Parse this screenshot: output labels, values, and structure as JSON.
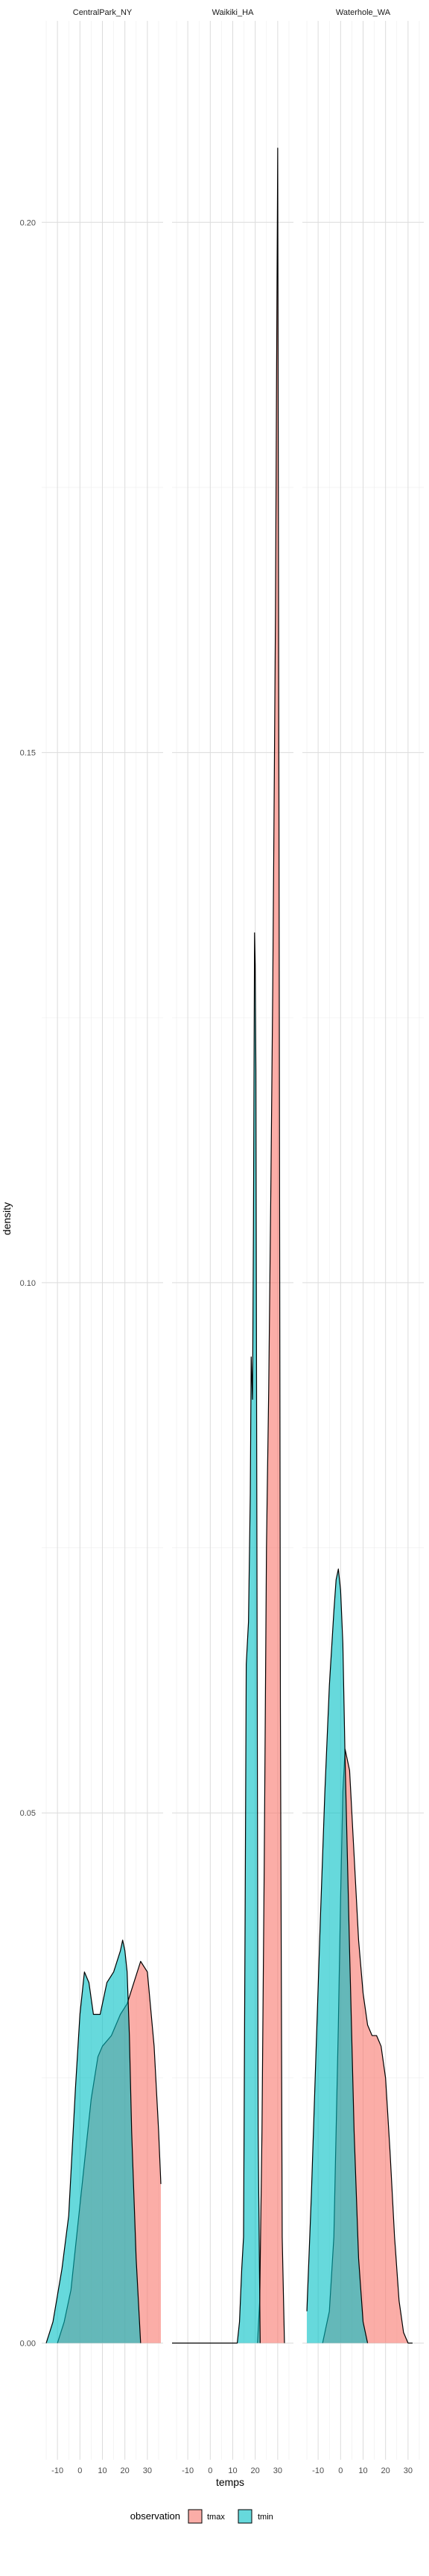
{
  "chart_data": {
    "type": "area",
    "xlabel": "temps",
    "ylabel": "density",
    "xlim": [
      -17,
      37
    ],
    "ylim": [
      -0.011,
      0.219
    ],
    "x_ticks": [
      -10,
      0,
      10,
      20,
      30
    ],
    "x_tick_labels": [
      "-10",
      "0",
      "10",
      "20",
      "30"
    ],
    "y_ticks": [
      0.0,
      0.05,
      0.1,
      0.15,
      0.2
    ],
    "y_tick_labels": [
      "0.00",
      "0.05",
      "0.10",
      "0.15",
      "0.20"
    ],
    "grid": true,
    "legend": {
      "title": "observation",
      "placement": "bottom",
      "entries": [
        {
          "name": "tmax",
          "color": "#F8766D"
        },
        {
          "name": "tmin",
          "color": "#00BFC4"
        }
      ]
    },
    "colors": {
      "tmax": "#F8766D",
      "tmin": "#00BFC4"
    },
    "panels": [
      {
        "title": "CentralPark_NY",
        "series": [
          {
            "name": "tmin",
            "x": [
              -15,
              -12,
              -8,
              -5,
              -2,
              0,
              2,
              4,
              6,
              9,
              12,
              15,
              18,
              19,
              20,
              21,
              22,
              23,
              25,
              27
            ],
            "y": [
              0.0,
              0.002,
              0.007,
              0.012,
              0.024,
              0.031,
              0.035,
              0.034,
              0.031,
              0.031,
              0.034,
              0.035,
              0.037,
              0.038,
              0.037,
              0.035,
              0.029,
              0.02,
              0.008,
              0.0
            ]
          },
          {
            "name": "tmax",
            "x": [
              -10,
              -7,
              -4,
              -1,
              2,
              5,
              8,
              10,
              14,
              18,
              21,
              24,
              27,
              30,
              33,
              35,
              36
            ],
            "y": [
              0.0,
              0.002,
              0.005,
              0.011,
              0.017,
              0.023,
              0.027,
              0.028,
              0.029,
              0.031,
              0.032,
              0.034,
              0.036,
              0.035,
              0.028,
              0.02,
              0.015
            ]
          }
        ]
      },
      {
        "title": "Waikiki_HA",
        "series": [
          {
            "name": "tmin",
            "x": [
              -17,
              10,
              11,
              12,
              13,
              14,
              14.8,
              15.5,
              16,
              17,
              17.8,
              18.2,
              18.8,
              19.2,
              19.7,
              20,
              20.3,
              20.8,
              21.3,
              22.2
            ],
            "y": [
              0.0,
              0.0,
              0.0,
              0.0,
              0.002,
              0.007,
              0.01,
              0.04,
              0.064,
              0.068,
              0.08,
              0.093,
              0.089,
              0.105,
              0.133,
              0.13,
              0.12,
              0.07,
              0.02,
              0.0
            ]
          },
          {
            "name": "tmax",
            "x": [
              21,
              22,
              23,
              24,
              25,
              26,
              27,
              27.8,
              28.5,
              29,
              29.5,
              30,
              30.6,
              31.2,
              32,
              33
            ],
            "y": [
              0.0,
              0.004,
              0.02,
              0.045,
              0.075,
              0.09,
              0.11,
              0.128,
              0.148,
              0.163,
              0.186,
              0.207,
              0.14,
              0.06,
              0.01,
              0.0
            ]
          }
        ]
      },
      {
        "title": "Waterhole_WA",
        "series": [
          {
            "name": "tmin",
            "x": [
              -15,
              -13,
              -11,
              -9,
              -7,
              -5,
              -3,
              -2,
              -1,
              0,
              1,
              2,
              4,
              6,
              8,
              10,
              12
            ],
            "y": [
              0.003,
              0.014,
              0.027,
              0.04,
              0.052,
              0.062,
              0.069,
              0.072,
              0.073,
              0.071,
              0.066,
              0.055,
              0.037,
              0.02,
              0.008,
              0.002,
              0.0
            ]
          },
          {
            "name": "tmax",
            "x": [
              -8,
              -5,
              -3,
              -1,
              0,
              1,
              2,
              4,
              6,
              8,
              10,
              12,
              14,
              16,
              18,
              20,
              22,
              24,
              26,
              28,
              30,
              32
            ],
            "y": [
              0.0,
              0.003,
              0.01,
              0.03,
              0.042,
              0.052,
              0.056,
              0.054,
              0.046,
              0.038,
              0.033,
              0.03,
              0.029,
              0.029,
              0.028,
              0.025,
              0.018,
              0.01,
              0.004,
              0.001,
              0.0,
              0.0
            ]
          }
        ]
      }
    ]
  }
}
